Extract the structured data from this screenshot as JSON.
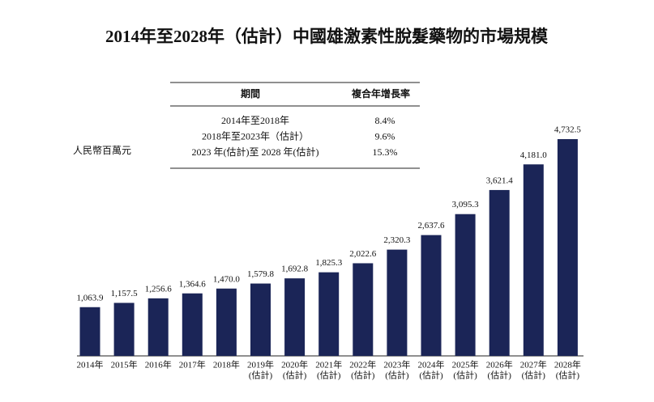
{
  "chart_data": {
    "type": "bar",
    "title": "2014年至2028年（估計）中國雄激素性脫髮藥物的市場規模",
    "unit": "人民幣百萬元",
    "color": "#1b2557",
    "categories": [
      [
        "2014年"
      ],
      [
        "2015年"
      ],
      [
        "2016年"
      ],
      [
        "2017年"
      ],
      [
        "2018年"
      ],
      [
        "2019年",
        "(估計)"
      ],
      [
        "2020年",
        "(估計)"
      ],
      [
        "2021年",
        "(估計)"
      ],
      [
        "2022年",
        "(估計)"
      ],
      [
        "2023年",
        "(估計)"
      ],
      [
        "2024年",
        "(估計)"
      ],
      [
        "2025年",
        "(估計)"
      ],
      [
        "2026年",
        "(估計)"
      ],
      [
        "2027年",
        "(估計)"
      ],
      [
        "2028年",
        "(估計)"
      ]
    ],
    "values": [
      1063.9,
      1157.5,
      1256.6,
      1364.6,
      1470.0,
      1579.8,
      1692.8,
      1825.3,
      2022.6,
      2320.3,
      2637.6,
      3095.3,
      3621.4,
      4181.0,
      4732.5
    ],
    "value_labels": [
      "1,063.9",
      "1,157.5",
      "1,256.6",
      "1,364.6",
      "1,470.0",
      "1,579.8",
      "1,692.8",
      "1,825.3",
      "2,022.6",
      "2,320.3",
      "2,637.6",
      "3,095.3",
      "3,621.4",
      "4,181.0",
      "4,732.5"
    ],
    "table": {
      "header": [
        "期間",
        "複合年增長率"
      ],
      "rows": [
        [
          "2014年至2018年",
          "8.4%"
        ],
        [
          "2018年至2023年（估計）",
          "9.6%"
        ],
        [
          "2023 年(估計)至 2028 年(估計)",
          "15.3%"
        ]
      ]
    }
  }
}
